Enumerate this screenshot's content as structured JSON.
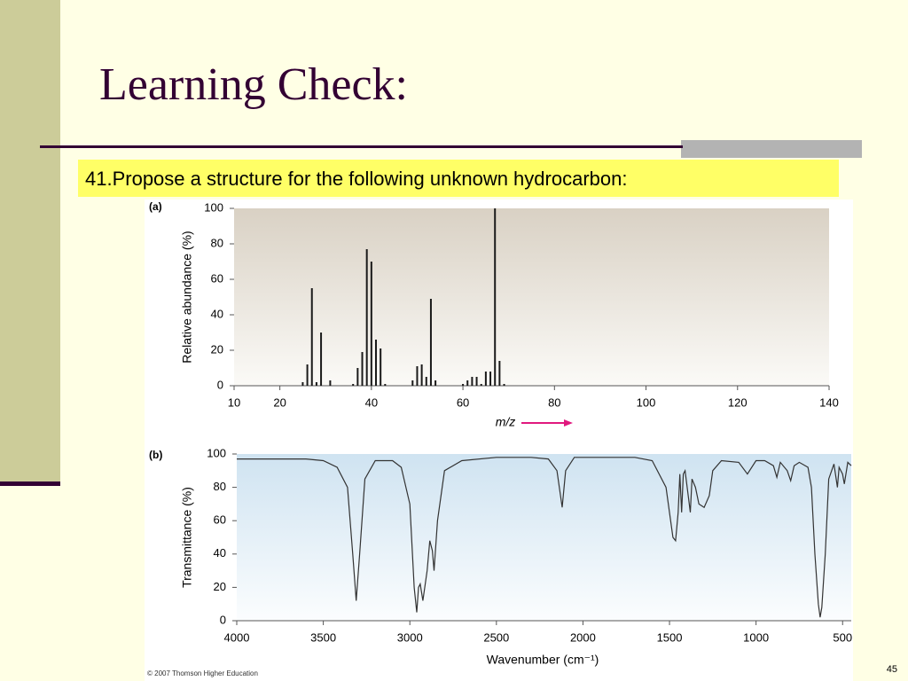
{
  "slide": {
    "title": "Learning Check:",
    "text": "41.Propose a structure for the following unknown hydrocarbon:",
    "copyright": "© 2007 Thomson Higher Education",
    "page_number": 45
  },
  "chart_data": [
    {
      "type": "bar",
      "panel": "(a)",
      "xlabel": "m/z",
      "ylabel": "Relative abundance (%)",
      "color": "#1a1a1a",
      "x": [
        25,
        26,
        27,
        28,
        29,
        31,
        36,
        37,
        38,
        39,
        40,
        41,
        42,
        43,
        49,
        50,
        51,
        52,
        53,
        54,
        60,
        61,
        62,
        63,
        64,
        65,
        66,
        67,
        68,
        69
      ],
      "values": [
        2,
        12,
        55,
        2,
        30,
        3,
        1,
        10,
        19,
        77,
        70,
        26,
        21,
        1,
        3,
        11,
        12,
        5,
        49,
        3,
        1,
        3,
        5,
        5,
        1,
        8,
        8,
        100,
        14,
        1
      ],
      "xlim": [
        10,
        140
      ],
      "xticks": [
        10,
        20,
        40,
        60,
        80,
        100,
        120,
        140
      ],
      "ylim": [
        0,
        100
      ],
      "yticks": [
        0,
        20,
        40,
        60,
        80,
        100
      ]
    },
    {
      "type": "line",
      "panel": "(b)",
      "xlabel": "Wavenumber (cm⁻¹)",
      "ylabel": "Transmittance (%)",
      "color": "#333333",
      "x": [
        4000,
        3900,
        3800,
        3700,
        3600,
        3500,
        3420,
        3360,
        3330,
        3310,
        3290,
        3260,
        3200,
        3100,
        3050,
        3000,
        2975,
        2960,
        2950,
        2940,
        2925,
        2900,
        2885,
        2870,
        2860,
        2840,
        2800,
        2700,
        2500,
        2300,
        2200,
        2150,
        2120,
        2100,
        2050,
        2000,
        1800,
        1700,
        1600,
        1520,
        1480,
        1465,
        1450,
        1440,
        1430,
        1420,
        1410,
        1380,
        1370,
        1350,
        1330,
        1300,
        1270,
        1250,
        1200,
        1100,
        1050,
        1000,
        950,
        900,
        880,
        860,
        820,
        800,
        780,
        750,
        700,
        680,
        660,
        640,
        630,
        620,
        600,
        580,
        550,
        530,
        520,
        500,
        490,
        470,
        450
      ],
      "y": [
        97,
        97,
        97,
        97,
        97,
        96,
        92,
        80,
        40,
        12,
        40,
        85,
        96,
        96,
        92,
        70,
        20,
        5,
        20,
        22,
        12,
        30,
        48,
        42,
        30,
        60,
        90,
        96,
        98,
        98,
        97,
        90,
        68,
        90,
        98,
        98,
        98,
        98,
        96,
        80,
        50,
        48,
        65,
        88,
        65,
        88,
        90,
        65,
        85,
        80,
        70,
        68,
        75,
        90,
        96,
        95,
        88,
        96,
        96,
        93,
        86,
        95,
        90,
        84,
        93,
        95,
        92,
        80,
        40,
        10,
        2,
        8,
        40,
        85,
        94,
        80,
        92,
        88,
        82,
        95,
        93
      ],
      "xlim": [
        4000,
        450
      ],
      "xticks": [
        4000,
        3500,
        3000,
        2500,
        2000,
        1500,
        1000,
        500
      ],
      "ylim": [
        0,
        100
      ],
      "yticks": [
        0,
        20,
        40,
        60,
        80,
        100
      ]
    }
  ]
}
